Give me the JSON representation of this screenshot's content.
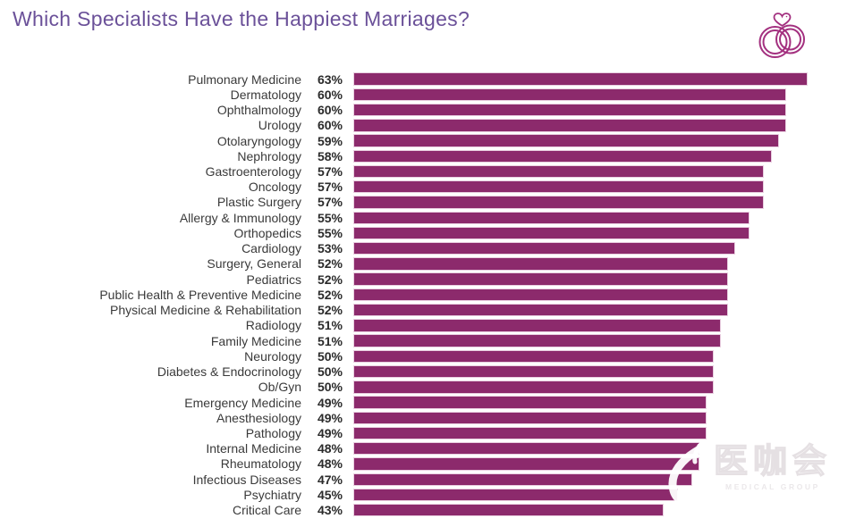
{
  "title": "Which Specialists Have the Happiest Marriages?",
  "colors": {
    "bar": "#8c2a6c",
    "title_text": "#6b5199",
    "label_text": "#3a3a3a",
    "value_text": "#2b2b2b",
    "rings_icon": "#a3307f",
    "background": "#ffffff"
  },
  "header_icon": "wedding-rings-with-heart-icon",
  "chart_data": {
    "type": "bar",
    "orientation": "horizontal",
    "title": "Which Specialists Have the Happiest Marriages?",
    "unit": "%",
    "xlabel": "",
    "ylabel": "",
    "xlim": [
      0,
      70
    ],
    "grid": false,
    "legend": "none",
    "value_labels_position": "left-of-bar",
    "categories": [
      "Pulmonary Medicine",
      "Dermatology",
      "Ophthalmology",
      "Urology",
      "Otolaryngology",
      "Nephrology",
      "Gastroenterology",
      "Oncology",
      "Plastic Surgery",
      "Allergy & Immunology",
      "Orthopedics",
      "Cardiology",
      "Surgery, General",
      "Pediatrics",
      "Public Health & Preventive Medicine",
      "Physical Medicine & Rehabilitation",
      "Radiology",
      "Family Medicine",
      "Neurology",
      "Diabetes & Endocrinology",
      "Ob/Gyn",
      "Emergency Medicine",
      "Anesthesiology",
      "Pathology",
      "Internal Medicine",
      "Rheumatology",
      "Infectious Diseases",
      "Psychiatry",
      "Critical Care"
    ],
    "values": [
      63,
      60,
      60,
      60,
      59,
      58,
      57,
      57,
      57,
      55,
      55,
      53,
      52,
      52,
      52,
      52,
      51,
      51,
      50,
      50,
      50,
      49,
      49,
      49,
      48,
      48,
      47,
      45,
      43
    ]
  },
  "watermark": {
    "logo": "medieco-watermark-logo",
    "text": "医咖会",
    "subtext": "MEDICAL GROUP"
  }
}
